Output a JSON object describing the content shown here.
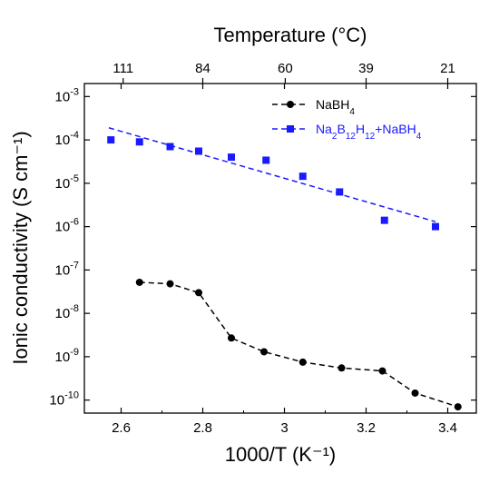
{
  "chart_data": {
    "type": "scatter",
    "title": "",
    "xlabel": "1000/T (K⁻¹)",
    "ylabel": "Ionic conductivity (S cm⁻¹)",
    "top_xlabel": "Temperature (°C)",
    "xlim": [
      2.51,
      3.47
    ],
    "ylim": [
      -10.3,
      -2.7
    ],
    "y_scale": "log",
    "x_ticks": [
      2.6,
      2.8,
      3.0,
      3.2,
      3.4
    ],
    "x_tick_labels": [
      "2.6",
      "2.8",
      "3",
      "3.2",
      "3.4"
    ],
    "y_ticks": [
      -3,
      -4,
      -5,
      -6,
      -7,
      -8,
      -9,
      -10
    ],
    "y_tick_labels": [
      {
        "base": "10",
        "exp": "-3"
      },
      {
        "base": "10",
        "exp": "-4"
      },
      {
        "base": "10",
        "exp": "-5"
      },
      {
        "base": "10",
        "exp": "-6"
      },
      {
        "base": "10",
        "exp": "-7"
      },
      {
        "base": "10",
        "exp": "-8"
      },
      {
        "base": "10",
        "exp": "-9"
      },
      {
        "base": "10",
        "exp": "-10"
      }
    ],
    "top_ticks": [
      {
        "label": "111",
        "x": 2.605
      },
      {
        "label": "84",
        "x": 2.8
      },
      {
        "label": "60",
        "x": 3.002
      },
      {
        "label": "39",
        "x": 3.2
      },
      {
        "label": "21",
        "x": 3.4
      }
    ],
    "legend_position": "top-right",
    "series": [
      {
        "name": "NaBH4",
        "name_parts": [
          [
            "NaBH",
            ""
          ],
          [
            "4",
            "sub"
          ]
        ],
        "color": "#000000",
        "marker": "circle",
        "line": "dashed-through-points",
        "x": [
          2.645,
          2.72,
          2.79,
          2.87,
          2.95,
          3.045,
          3.14,
          3.24,
          3.32,
          3.425
        ],
        "y": [
          5.2e-08,
          4.8e-08,
          3e-08,
          2.7e-09,
          1.3e-09,
          7.5e-10,
          5.5e-10,
          4.7e-10,
          1.45e-10,
          7e-11
        ]
      },
      {
        "name": "Na2B12H12+NaBH4",
        "name_parts": [
          [
            "Na",
            ""
          ],
          [
            "2",
            "sub"
          ],
          [
            "B",
            ""
          ],
          [
            "12",
            "sub"
          ],
          [
            "H",
            ""
          ],
          [
            "12",
            "sub"
          ],
          [
            "+NaBH",
            ""
          ],
          [
            "4",
            "sub"
          ]
        ],
        "color": "#1a1aff",
        "marker": "square",
        "line": "dashed-linear-fit",
        "fit_x": [
          2.57,
          3.37
        ],
        "fit_y": [
          0.00019,
          1.3e-06
        ],
        "x": [
          2.575,
          2.645,
          2.72,
          2.79,
          2.87,
          2.955,
          3.045,
          3.135,
          3.245,
          3.37
        ],
        "y": [
          0.0001,
          9e-05,
          7e-05,
          5.5e-05,
          4e-05,
          3.4e-05,
          1.45e-05,
          6.3e-06,
          1.4e-06,
          1e-06
        ]
      }
    ]
  }
}
